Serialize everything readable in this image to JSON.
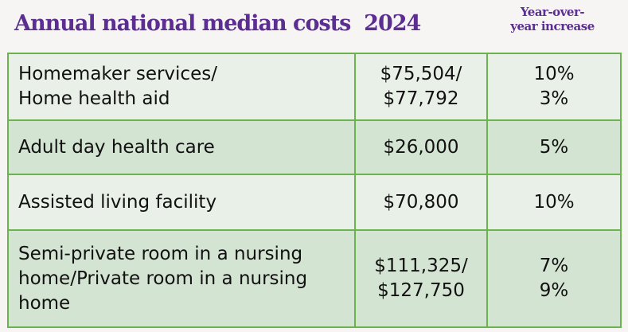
{
  "title": "Annual national median costs  2024",
  "yoy_header_line1": "Year-over-",
  "yoy_header_line2": "year increase",
  "rows": [
    {
      "service_line1": "Homemaker services/",
      "service_line2": "Home health aid",
      "cost_line1": "$75,504/",
      "cost_line2": "$77,792",
      "increase_line1": "10%",
      "increase_line2": "3%"
    },
    {
      "service_line1": "Adult day health care",
      "cost_line1": "$26,000",
      "increase_line1": "5%"
    },
    {
      "service_line1": "Assisted living facility",
      "cost_line1": "$70,800",
      "increase_line1": "10%"
    },
    {
      "service_line1": "Semi-private room in a nursing",
      "service_line2": "home/Private room in a nursing",
      "service_line3": "home",
      "cost_line1": "$111,325/",
      "cost_line2": "$127,750",
      "increase_line1": "7%",
      "increase_line2": "9%"
    }
  ]
}
